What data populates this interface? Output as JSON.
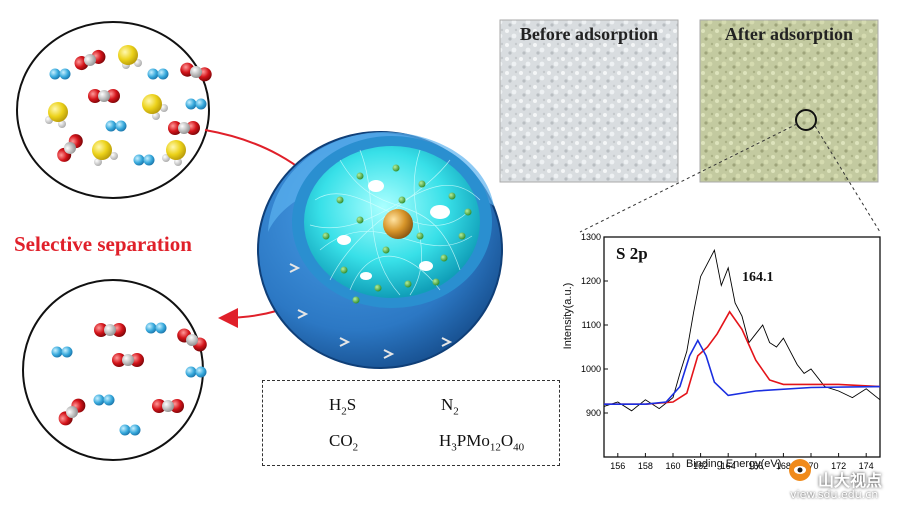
{
  "photos": {
    "before_title": "Before adsorption",
    "after_title": "After adsorption"
  },
  "process_label": "Selective separation",
  "legend": {
    "h2s": "H2S",
    "n2": "N2",
    "co2": "CO2",
    "hpa": "H3PMo12O40"
  },
  "colors": {
    "h2s_sulfur": "#ecd21a",
    "n2": "#37a9dc",
    "co2_oxygen": "#d4141a",
    "co2_carbon": "#c9c9c9",
    "hpa": "#d8962a",
    "shell": "#2c78c4",
    "core": "#38e0e8",
    "arrow": "#e0202a",
    "line_raw": "#000000",
    "line_fit_red": "#e4141a",
    "line_fit_blue": "#1a2ee0"
  },
  "chart_data": {
    "type": "line",
    "title": "S 2p",
    "xlabel": "Binding Energy(eV)",
    "ylabel": "Intensity(a.u.)",
    "xlim": [
      155,
      175
    ],
    "ylim": [
      800,
      1300
    ],
    "x_ticks": [
      156,
      158,
      160,
      162,
      164,
      166,
      168,
      170,
      172,
      174
    ],
    "y_ticks": [
      900,
      1000,
      1100,
      1200,
      1300
    ],
    "annotation": "164.1",
    "series": [
      {
        "kind": "raw",
        "x": [
          155,
          156,
          157,
          158,
          159,
          160,
          160.5,
          161,
          161.5,
          162,
          162.5,
          163,
          163.5,
          164,
          164.5,
          165,
          165.5,
          166,
          166.5,
          167,
          167.5,
          168,
          168.5,
          169,
          169.5,
          170,
          171,
          172,
          173,
          174,
          175
        ],
        "y": [
          915,
          925,
          905,
          930,
          910,
          935,
          990,
          1040,
          1130,
          1210,
          1240,
          1270,
          1190,
          1230,
          1150,
          1120,
          1060,
          1080,
          1100,
          1060,
          1050,
          1070,
          1040,
          1010,
          990,
          1000,
          960,
          950,
          935,
          955,
          930
        ]
      },
      {
        "kind": "fit_red",
        "x": [
          155,
          158,
          160,
          161,
          161.8,
          162.5,
          163.2,
          164.1,
          165,
          166,
          167,
          168,
          170,
          172,
          175
        ],
        "y": [
          920,
          920,
          925,
          945,
          1030,
          1050,
          1080,
          1130,
          1090,
          1020,
          975,
          965,
          965,
          965,
          960
        ]
      },
      {
        "kind": "fit_blue",
        "x": [
          155,
          158,
          159.5,
          160.5,
          161.2,
          161.8,
          162.4,
          163,
          164,
          166,
          170,
          175
        ],
        "y": [
          920,
          920,
          925,
          960,
          1030,
          1065,
          1030,
          970,
          940,
          950,
          958,
          960
        ]
      }
    ]
  }
}
